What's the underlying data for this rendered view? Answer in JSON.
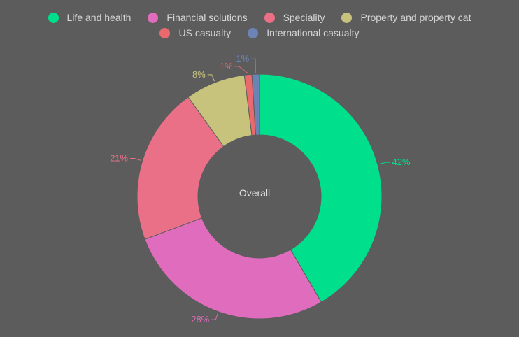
{
  "chart_data": {
    "type": "pie",
    "style": "donut",
    "center_label": "Overall",
    "legend_placement": "top",
    "categories": [
      "Life and health",
      "Financial solutions",
      "Speciality",
      "Property and property cat",
      "US casualty",
      "International casualty"
    ],
    "values": [
      42,
      28,
      21,
      8,
      1,
      1
    ],
    "value_labels": [
      "42%",
      "28%",
      "21%",
      "8%",
      "1%",
      "1%"
    ],
    "colors": [
      "#00e08c",
      "#e06cbd",
      "#ea7088",
      "#c8c37c",
      "#e96a6e",
      "#6c84b4"
    ]
  }
}
